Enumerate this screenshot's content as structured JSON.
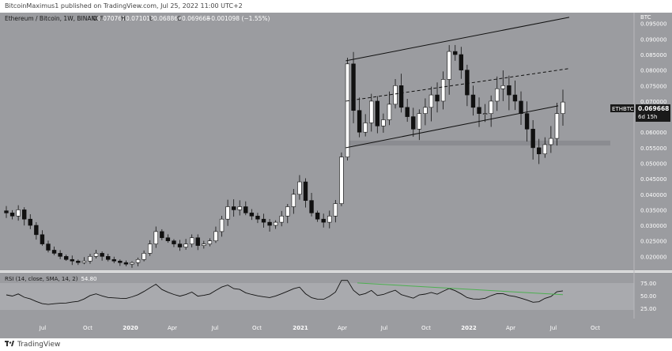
{
  "header": {
    "published": "BitcoinMaximus1 published on TradingView.com, Jul 25, 2022 11:00 UTC+2"
  },
  "symbol": {
    "legend": "Ethereum / Bitcoin, 1W, BINANCE",
    "o_label": "O",
    "o": "0.070767",
    "h_label": "H",
    "h": "0.071012",
    "l_label": "L",
    "l": "0.068867",
    "c_label": "C",
    "c": "0.069668",
    "change": "−0.001098 (−1.55%)"
  },
  "price_axis": {
    "currency": "BTC",
    "ticks": [
      "0.095000",
      "0.090000",
      "0.085000",
      "0.080000",
      "0.075000",
      "0.070000",
      "0.065000",
      "0.060000",
      "0.055000",
      "0.050000",
      "0.045000",
      "0.040000",
      "0.035000",
      "0.030000",
      "0.025000",
      "0.020000"
    ],
    "tick_values": [
      0.095,
      0.09,
      0.085,
      0.08,
      0.075,
      0.07,
      0.065,
      0.06,
      0.055,
      0.05,
      0.045,
      0.04,
      0.035,
      0.03,
      0.025,
      0.02
    ],
    "last_price_ticker": "ETHBTC",
    "last_price": "0.069668",
    "countdown": "6d 15h"
  },
  "rsi": {
    "legend": "RSI (14, close, SMA, 14, 2)",
    "value": "54.80",
    "ticks": [
      "75.00",
      "50.00",
      "25.00"
    ],
    "tick_values": [
      75,
      50,
      25
    ]
  },
  "time_axis": {
    "labels": [
      "Jul",
      "Oct",
      "2020",
      "Apr",
      "Jul",
      "Oct",
      "2021",
      "Apr",
      "Jul",
      "Oct",
      "2022",
      "Apr",
      "Jul",
      "Oct"
    ],
    "bold": [
      false,
      false,
      true,
      false,
      false,
      false,
      true,
      false,
      false,
      false,
      true,
      false,
      false,
      false
    ]
  },
  "footer": {
    "brand": "TradingView"
  },
  "colors": {
    "chart_bg": "#9b9ca0",
    "rsi_band": "#a9aaae",
    "candle_up": "#ffffff",
    "candle_down": "#111111",
    "support_zone": "#8a8b8f",
    "rsi_sma": "#4caf50"
  },
  "chart_data": {
    "type": "candlestick",
    "price_scale": {
      "min": 0.0155,
      "max": 0.0985
    },
    "close_approx": [
      0.034,
      0.033,
      0.035,
      0.032,
      0.03,
      0.027,
      0.024,
      0.022,
      0.021,
      0.02,
      0.019,
      0.0185,
      0.018,
      0.0185,
      0.02,
      0.021,
      0.02,
      0.019,
      0.0185,
      0.018,
      0.0175,
      0.018,
      0.019,
      0.021,
      0.024,
      0.028,
      0.026,
      0.025,
      0.024,
      0.023,
      0.024,
      0.026,
      0.0235,
      0.024,
      0.025,
      0.028,
      0.032,
      0.036,
      0.035,
      0.036,
      0.034,
      0.033,
      0.032,
      0.031,
      0.03,
      0.031,
      0.033,
      0.036,
      0.04,
      0.044,
      0.038,
      0.034,
      0.032,
      0.031,
      0.033,
      0.037,
      0.052,
      0.082,
      0.067,
      0.06,
      0.063,
      0.07,
      0.062,
      0.064,
      0.069,
      0.075,
      0.068,
      0.065,
      0.061,
      0.066,
      0.068,
      0.072,
      0.07,
      0.077,
      0.086,
      0.085,
      0.08,
      0.072,
      0.068,
      0.066,
      0.066,
      0.07,
      0.074,
      0.075,
      0.072,
      0.07,
      0.066,
      0.061,
      0.055,
      0.053,
      0.056,
      0.058,
      0.066,
      0.0697
    ],
    "channel_upper": {
      "start": {
        "x": "2021-04",
        "y": 0.083
      },
      "end": {
        "x": "2022-08",
        "y": 0.097
      }
    },
    "channel_lower": {
      "start": {
        "x": "2021-04",
        "y": 0.055
      },
      "end": {
        "x": "2022-08",
        "y": 0.069
      }
    },
    "horizontal_support": 0.0565,
    "rsi_bearish_trendline": {
      "start": 75,
      "end": 52
    }
  }
}
